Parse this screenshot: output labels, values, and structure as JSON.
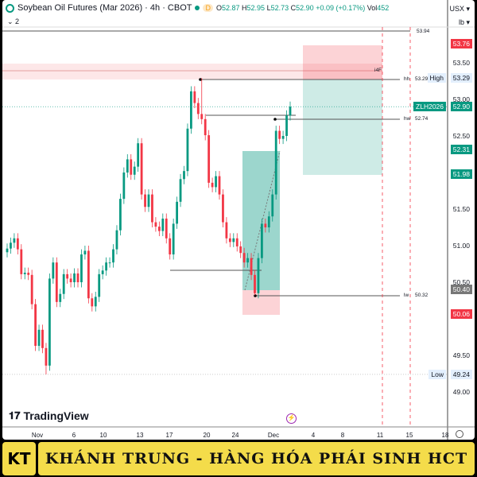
{
  "header": {
    "title": "Soybean Oil Futures (Mar 2026) · 4h · CBOT",
    "session_badge": "D",
    "open_label": "O",
    "open": "52.87",
    "high_label": "H",
    "high": "52.95",
    "low_label": "L",
    "low": "52.73",
    "close_label": "C",
    "close": "52.90",
    "change": "+0.09 (+0.17%)",
    "vol_label": "Vol",
    "vol": "452",
    "indicators_count": "2",
    "currency": "USX",
    "unit": "lb"
  },
  "colors": {
    "up": "#089981",
    "down": "#f23645",
    "accent": "#089981"
  },
  "price_axis": [
    {
      "text": "53.76",
      "price": 53.76,
      "style": "red"
    },
    {
      "text": "53.50",
      "price": 53.5,
      "style": "plain"
    },
    {
      "text": "53.29",
      "price": 53.29,
      "style": "blue",
      "tag": "High"
    },
    {
      "text": "53.00",
      "price": 53.0,
      "style": "plain"
    },
    {
      "text": "52.90",
      "price": 52.9,
      "style": "green",
      "tag": "ZLH2026"
    },
    {
      "text": "52.50",
      "price": 52.5,
      "style": "plain"
    },
    {
      "text": "52.31",
      "price": 52.31,
      "style": "green"
    },
    {
      "text": "51.98",
      "price": 51.98,
      "style": "green"
    },
    {
      "text": "51.50",
      "price": 51.5,
      "style": "plain"
    },
    {
      "text": "51.00",
      "price": 51.0,
      "style": "plain"
    },
    {
      "text": "50.50",
      "price": 50.5,
      "style": "plain"
    },
    {
      "text": "50.40",
      "price": 50.4,
      "style": "gray"
    },
    {
      "text": "50.06",
      "price": 50.06,
      "style": "red"
    },
    {
      "text": "49.50",
      "price": 49.5,
      "style": "plain"
    },
    {
      "text": "49.24",
      "price": 49.24,
      "style": "blue",
      "tag": "Low"
    },
    {
      "text": "49.00",
      "price": 49.0,
      "style": "plain"
    }
  ],
  "time_axis": [
    "Nov",
    "6",
    "10",
    "13",
    "17",
    "20",
    "24",
    "Dec",
    "4",
    "8",
    "11",
    "15",
    "18"
  ],
  "levels": {
    "top": "53.94",
    "hh_tag": "hh",
    "hh": "53.29",
    "hw_tag": "hw",
    "hw": "52.74",
    "lw_tag": "lw",
    "lw": "50.32",
    "zone_tag": "i4F"
  },
  "chart_data": {
    "type": "candlestick",
    "symbol": "ZLH2026",
    "interval": "4h",
    "ylim": [
      48.6,
      54.3
    ],
    "close": [
      50.96,
      51.04,
      51.1,
      50.95,
      50.61,
      50.63,
      50.6,
      50.2,
      49.63,
      49.85,
      49.6,
      49.36,
      50.55,
      50.77,
      50.23,
      50.34,
      50.61,
      50.55,
      50.5,
      50.62,
      50.5,
      50.88,
      50.93,
      50.28,
      50.17,
      50.3,
      50.61,
      50.66,
      50.77,
      50.77,
      50.95,
      51.21,
      51.64,
      52.0,
      52.18,
      51.97,
      52.08,
      52.4,
      51.7,
      51.53,
      51.7,
      51.32,
      51.26,
      51.2,
      51.37,
      51.1,
      50.88,
      51.3,
      51.6,
      51.91,
      52.02,
      52.6,
      53.11,
      52.95,
      52.8,
      52.73,
      52.51,
      51.86,
      51.8,
      51.95,
      51.7,
      51.32,
      51.1,
      51.05,
      51.1,
      50.99,
      50.9,
      50.77,
      50.83,
      50.6,
      50.35,
      50.83,
      51.3,
      51.25,
      51.4,
      51.7,
      52.57,
      52.46,
      52.5,
      52.78,
      52.9
    ],
    "period_high": 53.29,
    "period_low": 49.24
  },
  "brand": {
    "tradingview": "TradingView",
    "banner_logo": "KT",
    "banner_text": "KHÁNH TRUNG - HÀNG HÓA PHÁI SINH HCT"
  }
}
